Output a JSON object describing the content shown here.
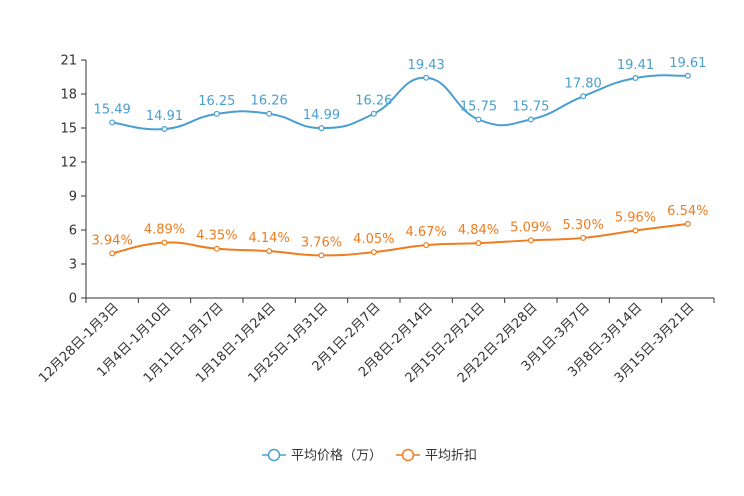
{
  "chart_data": {
    "type": "line",
    "categories": [
      "12月28日-1月3日",
      "1月4日-1月10日",
      "1月11日-1月17日",
      "1月18日-1月24日",
      "1月25日-1月31日",
      "2月1日-2月7日",
      "2月8日-2月14日",
      "2月15日-2月21日",
      "2月22日-2月28日",
      "3月1日-3月7日",
      "3月8日-3月14日",
      "3月15日-3月21日"
    ],
    "series": [
      {
        "name": "平均价格（万）",
        "color": "#4a9fd0",
        "values": [
          15.49,
          14.91,
          16.25,
          16.26,
          14.99,
          16.26,
          19.43,
          15.75,
          15.75,
          17.8,
          19.41,
          19.61
        ],
        "labels": [
          "15.49",
          "14.91",
          "16.25",
          "16.26",
          "14.99",
          "16.26",
          "19.43",
          "15.75",
          "15.75",
          "17.80",
          "19.41",
          "19.61"
        ]
      },
      {
        "name": "平均折扣",
        "color": "#f07c1e",
        "values": [
          3.94,
          4.89,
          4.35,
          4.14,
          3.76,
          4.05,
          4.67,
          4.84,
          5.09,
          5.3,
          5.96,
          6.54
        ],
        "labels": [
          "3.94%",
          "4.89%",
          "4.35%",
          "4.14%",
          "3.76%",
          "4.05%",
          "4.67%",
          "4.84%",
          "5.09%",
          "5.30%",
          "5.96%",
          "6.54%"
        ]
      }
    ],
    "ylim": [
      0,
      21
    ],
    "yticks": [
      "0",
      "3",
      "6",
      "9",
      "12",
      "15",
      "18",
      "21"
    ],
    "title": "",
    "xlabel": "",
    "ylabel": "",
    "legend_position": "bottom-center",
    "grid": false
  }
}
